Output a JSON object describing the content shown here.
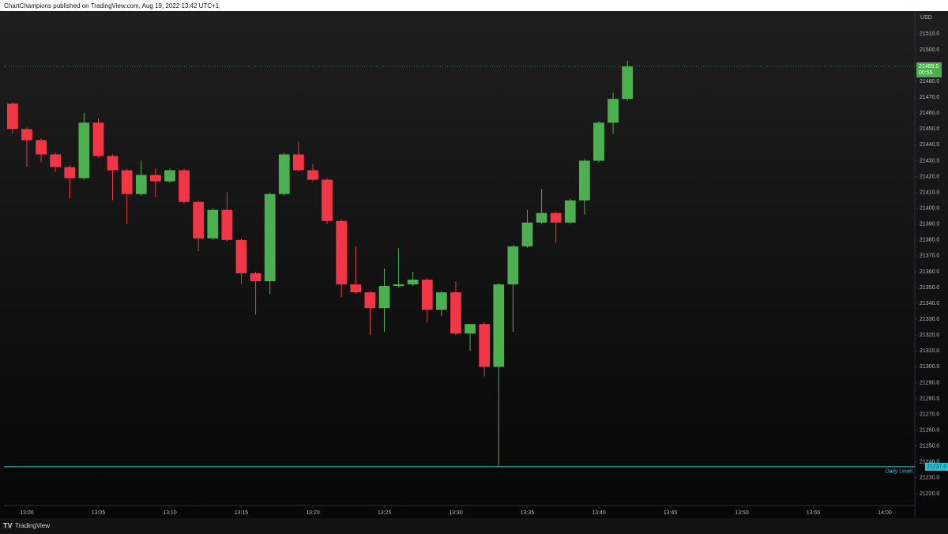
{
  "chart_data": {
    "type": "candlestick",
    "title": "ChartChampions published on TradingView.com, Aug 19, 2022 13:42 UTC+1",
    "currency": "USD",
    "brand": "TradingView",
    "x": [
      779,
      780,
      781,
      782,
      783,
      784,
      785,
      786,
      787,
      788,
      789,
      790,
      791,
      792,
      793,
      794,
      795,
      796,
      797,
      798,
      799,
      800,
      801,
      802,
      803,
      804,
      805,
      806,
      807,
      808,
      809,
      810,
      811,
      812,
      813,
      814,
      815,
      816,
      817,
      818,
      819,
      820,
      821,
      822
    ],
    "open": [
      21466,
      21450,
      21443,
      21434,
      21426,
      21419,
      21454,
      21433,
      21424,
      21409,
      21421,
      21417,
      21424,
      21404,
      21381,
      21399,
      21380,
      21359,
      21354,
      21409,
      21434,
      21424,
      21418,
      21392,
      21352,
      21347,
      21337,
      21351,
      21352,
      21355,
      21336,
      21347,
      21321,
      21327,
      21300,
      21352,
      21376,
      21391,
      21397,
      21391,
      21405,
      21430,
      21454,
      21469
    ],
    "high": [
      21467,
      21451,
      21444,
      21435,
      21427,
      21460,
      21457,
      21434,
      21425,
      21430,
      21425,
      21425,
      21425,
      21405,
      21400,
      21410,
      21381,
      21360,
      21410,
      21435,
      21442,
      21428,
      21419,
      21393,
      21376,
      21348,
      21362,
      21375,
      21360,
      21356,
      21348,
      21354,
      21327,
      21328,
      21353,
      21377,
      21399,
      21412,
      21398,
      21406,
      21431,
      21455,
      21473,
      21493
    ],
    "low": [
      21447,
      21426,
      21429,
      21423,
      21406,
      21418,
      21432,
      21405,
      21390,
      21408,
      21407,
      21416,
      21403,
      21373,
      21380,
      21379,
      21352,
      21333,
      21346,
      21408,
      21423,
      21417,
      21390,
      21344,
      21346,
      21320,
      21322,
      21350,
      21351,
      21328,
      21332,
      21320,
      21310,
      21294,
      21237,
      21322,
      21375,
      21390,
      21378,
      21390,
      21396,
      21429,
      21447,
      21468
    ],
    "close": [
      21450,
      21443,
      21434,
      21426,
      21419,
      21454,
      21433,
      21424,
      21409,
      21421,
      21417,
      21424,
      21404,
      21381,
      21399,
      21380,
      21359,
      21354,
      21409,
      21434,
      21424,
      21418,
      21392,
      21352,
      21347,
      21337,
      21351,
      21352,
      21355,
      21336,
      21347,
      21321,
      21327,
      21300,
      21352,
      21376,
      21391,
      21397,
      21391,
      21405,
      21430,
      21454,
      21469,
      21489.5
    ],
    "up_color": "#4caf50",
    "down_color": "#f23645",
    "xlim": [
      778.4,
      842.1
    ],
    "xticks": [
      {
        "value": 780,
        "label": "13:00"
      },
      {
        "value": 785,
        "label": "13:05"
      },
      {
        "value": 790,
        "label": "13:10"
      },
      {
        "value": 795,
        "label": "13:15"
      },
      {
        "value": 800,
        "label": "13:20"
      },
      {
        "value": 805,
        "label": "13:25"
      },
      {
        "value": 810,
        "label": "13:30"
      },
      {
        "value": 815,
        "label": "13:35"
      },
      {
        "value": 820,
        "label": "13:40"
      },
      {
        "value": 825,
        "label": "13:45"
      },
      {
        "value": 830,
        "label": "13:50"
      },
      {
        "value": 835,
        "label": "13:55"
      },
      {
        "value": 840,
        "label": "14:00"
      }
    ],
    "ylim": [
      21212.5,
      21524.4
    ],
    "yticks": [
      {
        "value": 21220,
        "label": "21220.0"
      },
      {
        "value": 21230,
        "label": "21230.0"
      },
      {
        "value": 21240,
        "label": "21240.0"
      },
      {
        "value": 21250,
        "label": "21250.0"
      },
      {
        "value": 21260,
        "label": "21260.0"
      },
      {
        "value": 21270,
        "label": "21270.0"
      },
      {
        "value": 21280,
        "label": "21280.0"
      },
      {
        "value": 21290,
        "label": "21290.0"
      },
      {
        "value": 21300,
        "label": "21300.0"
      },
      {
        "value": 21310,
        "label": "21310.0"
      },
      {
        "value": 21320,
        "label": "21320.0"
      },
      {
        "value": 21330,
        "label": "21330.0"
      },
      {
        "value": 21340,
        "label": "21340.0"
      },
      {
        "value": 21350,
        "label": "21350.0"
      },
      {
        "value": 21360,
        "label": "21360.0"
      },
      {
        "value": 21370,
        "label": "21370.0"
      },
      {
        "value": 21380,
        "label": "21380.0"
      },
      {
        "value": 21390,
        "label": "21390.0"
      },
      {
        "value": 21400,
        "label": "21400.0"
      },
      {
        "value": 21410,
        "label": "21410.0"
      },
      {
        "value": 21420,
        "label": "21420.0"
      },
      {
        "value": 21430,
        "label": "21430.0"
      },
      {
        "value": 21440,
        "label": "21440.0"
      },
      {
        "value": 21450,
        "label": "21450.0"
      },
      {
        "value": 21460,
        "label": "21460.0"
      },
      {
        "value": 21470,
        "label": "21470.0"
      },
      {
        "value": 21480,
        "label": "21480.0"
      },
      {
        "value": 21490,
        "label": "21490.0"
      },
      {
        "value": 21500,
        "label": "21500.0"
      },
      {
        "value": 21510,
        "label": "21510.0"
      }
    ],
    "grid": false,
    "last_price": 21489.5,
    "countdown": "00:55",
    "level": {
      "label": "Daily Level",
      "value": 21237,
      "value_label": "21237.0",
      "color": "#26c6da"
    }
  }
}
